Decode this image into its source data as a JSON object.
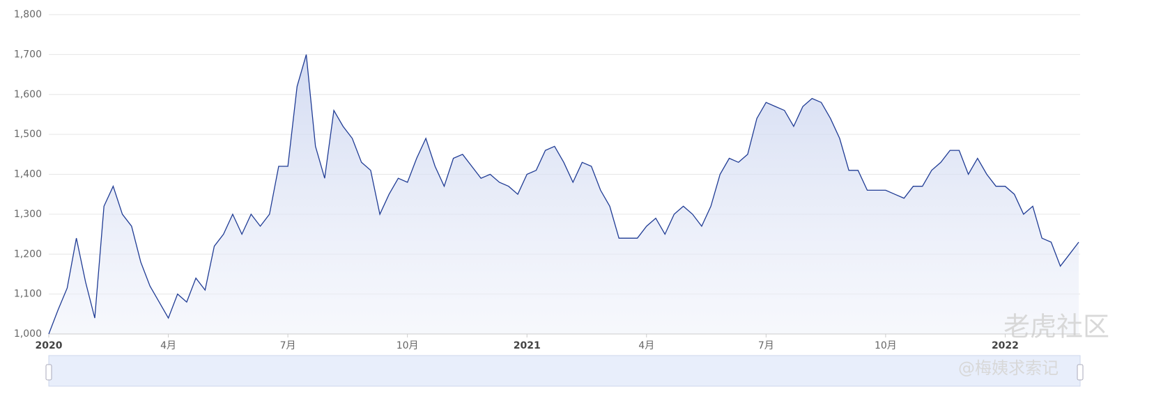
{
  "chart_data": {
    "type": "line",
    "categories": [
      "2020",
      null,
      null,
      null,
      null,
      null,
      null,
      null,
      null,
      null,
      null,
      null,
      null,
      "4月",
      null,
      null,
      null,
      null,
      null,
      null,
      null,
      null,
      null,
      null,
      null,
      null,
      "7月",
      null,
      null,
      null,
      null,
      null,
      null,
      null,
      null,
      null,
      null,
      null,
      null,
      "10月",
      null,
      null,
      null,
      null,
      null,
      null,
      null,
      null,
      null,
      null,
      null,
      null,
      "2021",
      null,
      null,
      null,
      null,
      null,
      null,
      null,
      null,
      null,
      null,
      null,
      null,
      "4月",
      null,
      null,
      null,
      null,
      null,
      null,
      null,
      null,
      null,
      null,
      null,
      null,
      "7月",
      null,
      null,
      null,
      null,
      null,
      null,
      null,
      null,
      null,
      null,
      null,
      null,
      "10月",
      null,
      null,
      null,
      null,
      null,
      null,
      null,
      null,
      null,
      null,
      null,
      null,
      "2022",
      null,
      null,
      null,
      null,
      null,
      null,
      null,
      null
    ],
    "series": [
      {
        "color": "#1f3b94",
        "values": [
          1000,
          1060,
          1115,
          1240,
          1130,
          1040,
          1320,
          1370,
          1300,
          1270,
          1180,
          1120,
          1080,
          1040,
          1100,
          1080,
          1140,
          1110,
          1220,
          1250,
          1300,
          1250,
          1300,
          1270,
          1300,
          1420,
          1420,
          1620,
          1700,
          1470,
          1390,
          1560,
          1520,
          1490,
          1430,
          1410,
          1300,
          1350,
          1390,
          1380,
          1440,
          1490,
          1420,
          1370,
          1440,
          1450,
          1420,
          1390,
          1400,
          1380,
          1370,
          1350,
          1400,
          1410,
          1460,
          1470,
          1430,
          1380,
          1430,
          1420,
          1360,
          1320,
          1240,
          1240,
          1240,
          1270,
          1290,
          1250,
          1300,
          1320,
          1300,
          1270,
          1320,
          1400,
          1440,
          1430,
          1450,
          1540,
          1580,
          1570,
          1560,
          1520,
          1570,
          1590,
          1580,
          1540,
          1490,
          1410,
          1410,
          1360,
          1360,
          1360,
          1350,
          1340,
          1370,
          1370,
          1410,
          1430,
          1460,
          1460,
          1400,
          1440,
          1400,
          1370,
          1370,
          1350,
          1300,
          1320,
          1240,
          1230,
          1170,
          1200,
          1230
        ]
      }
    ],
    "ylim": [
      1000,
      1800
    ],
    "yticks": [
      {
        "value": 1000,
        "label": "1,000"
      },
      {
        "value": 1100,
        "label": "1,100"
      },
      {
        "value": 1200,
        "label": "1,200"
      },
      {
        "value": 1300,
        "label": "1,300"
      },
      {
        "value": 1400,
        "label": "1,400"
      },
      {
        "value": 1500,
        "label": "1,500"
      },
      {
        "value": 1600,
        "label": "1,600"
      },
      {
        "value": 1700,
        "label": "1,700"
      },
      {
        "value": 1800,
        "label": "1,800"
      }
    ],
    "grid": true,
    "annotations": [
      "老虎社区",
      "@梅姨求索记"
    ]
  }
}
